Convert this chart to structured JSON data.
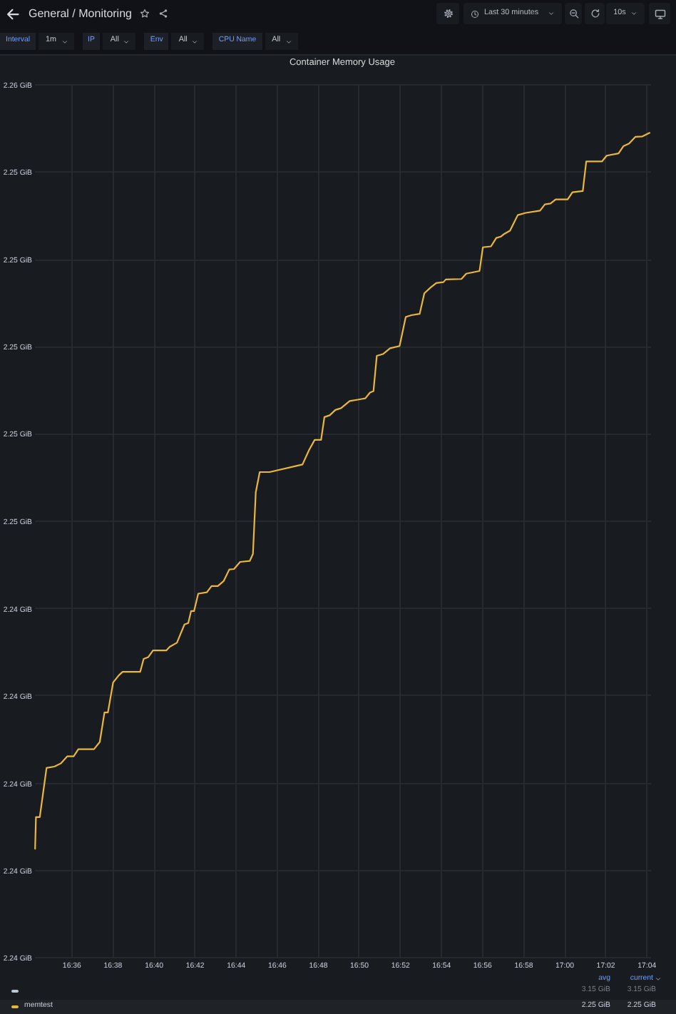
{
  "chart_data": {
    "type": "line",
    "title": "Container Memory Usage",
    "x": [
      16.5707,
      16.5714,
      16.5745,
      16.58,
      16.5864,
      16.5915,
      16.5969,
      16.602,
      16.6058,
      16.6185,
      16.6232,
      16.627,
      16.6298,
      16.634,
      16.6386,
      16.6417,
      16.656,
      16.6588,
      16.6626,
      16.6664,
      16.6773,
      16.68,
      16.6858,
      16.6919,
      16.695,
      16.6973,
      16.6997,
      16.7031,
      16.7101,
      16.7139,
      16.719,
      16.7237,
      16.7283,
      16.7321,
      16.7371,
      16.7449,
      16.7475,
      16.7498,
      16.753,
      16.7611,
      16.7877,
      16.793,
      16.7976,
      16.8028,
      16.8055,
      16.8098,
      16.8144,
      16.819,
      16.826,
      16.8326,
      16.8387,
      16.8425,
      16.8453,
      16.848,
      16.853,
      16.8588,
      16.8665,
      16.8715,
      16.8761,
      16.8828,
      16.8866,
      16.8917,
      16.8963,
      16.9021,
      16.904,
      16.9167,
      16.9206,
      16.9314,
      16.9341,
      16.9407,
      16.945,
      16.9488,
      16.9515,
      16.9561,
      16.9624,
      16.9689,
      16.9805,
      16.9844,
      16.989,
      16.9932,
      17.0029,
      17.0068,
      17.0152,
      17.018,
      17.0307,
      17.0346,
      17.0442,
      17.0481,
      17.0528,
      17.0578,
      17.0636,
      17.0694
    ],
    "series": [
      {
        "color": "#b9c9d3",
        "values": [
          null,
          null,
          null,
          null,
          null,
          null,
          null,
          null,
          null,
          null,
          null,
          null,
          null,
          null,
          null,
          null,
          null,
          null,
          null,
          null,
          null,
          null,
          null,
          null,
          null,
          null,
          null,
          null,
          null,
          null,
          null,
          null,
          null,
          null,
          null,
          null,
          null,
          null,
          null,
          null,
          null,
          null,
          null,
          null,
          null,
          null,
          null,
          null,
          null,
          null,
          null,
          null,
          null,
          null,
          null,
          null,
          null,
          null,
          null,
          null,
          null,
          null,
          null,
          null,
          null,
          null,
          null,
          null,
          null,
          null,
          null,
          null,
          null,
          null,
          null,
          null,
          null,
          null,
          null,
          null,
          null,
          null,
          null,
          null,
          null,
          null,
          null,
          null,
          null,
          null,
          null,
          null
        ]
      },
      {
        "name": "memtest",
        "color": "#eab839",
        "values": [
          2.23875,
          2.23946,
          2.23946,
          2.24056,
          2.24059,
          2.24066,
          2.24082,
          2.24082,
          2.24098,
          2.24098,
          2.24114,
          2.2418,
          2.2418,
          2.24247,
          2.24263,
          2.24271,
          2.24271,
          2.243,
          2.24304,
          2.24319,
          2.24319,
          2.24327,
          2.24336,
          2.24377,
          2.2438,
          2.24407,
          2.24407,
          2.24446,
          2.24449,
          2.24463,
          2.24463,
          2.24474,
          2.245,
          2.24501,
          2.24517,
          2.24519,
          2.24535,
          2.24673,
          2.24718,
          2.24718,
          2.24735,
          2.24767,
          2.2479,
          2.2479,
          2.24841,
          2.24845,
          2.24857,
          2.24861,
          2.24877,
          2.2488,
          2.24883,
          2.24896,
          2.24899,
          2.24978,
          2.24982,
          2.24995,
          2.25,
          2.25065,
          2.25069,
          2.25072,
          2.25118,
          2.25131,
          2.25141,
          2.25143,
          2.25149,
          2.2515,
          2.25162,
          2.25168,
          2.25221,
          2.25223,
          2.25242,
          2.25245,
          2.25251,
          2.25258,
          2.25293,
          2.25298,
          2.25303,
          2.25317,
          2.25319,
          2.25328,
          2.25328,
          2.25344,
          2.25347,
          2.25413,
          2.25413,
          2.25426,
          2.25431,
          2.25447,
          2.25453,
          2.25468,
          2.25469,
          2.25477
        ]
      }
    ],
    "xlim": [
      16.57,
      17.07
    ],
    "xticks": [
      {
        "value": 16.6,
        "label": "16:36"
      },
      {
        "value": 16.6333,
        "label": "16:38"
      },
      {
        "value": 16.6667,
        "label": "16:40"
      },
      {
        "value": 16.7,
        "label": "16:42"
      },
      {
        "value": 16.7333,
        "label": "16:44"
      },
      {
        "value": 16.7667,
        "label": "16:46"
      },
      {
        "value": 16.8,
        "label": "16:48"
      },
      {
        "value": 16.8333,
        "label": "16:50"
      },
      {
        "value": 16.8667,
        "label": "16:52"
      },
      {
        "value": 16.9,
        "label": "16:54"
      },
      {
        "value": 16.9333,
        "label": "16:56"
      },
      {
        "value": 16.9667,
        "label": "16:58"
      },
      {
        "value": 17.0,
        "label": "17:00"
      },
      {
        "value": 17.0333,
        "label": "17:02"
      },
      {
        "value": 17.0667,
        "label": "17:04"
      }
    ],
    "ylim": [
      2.23633,
      2.25586
    ],
    "yticks": [
      {
        "value": 2.23633,
        "label": "2.24 GiB"
      },
      {
        "value": 2.23828,
        "label": "2.24 GiB"
      },
      {
        "value": 2.24023,
        "label": "2.24 GiB"
      },
      {
        "value": 2.24219,
        "label": "2.24 GiB"
      },
      {
        "value": 2.24414,
        "label": "2.24 GiB"
      },
      {
        "value": 2.24609,
        "label": "2.25 GiB"
      },
      {
        "value": 2.24805,
        "label": "2.25 GiB"
      },
      {
        "value": 2.25,
        "label": "2.25 GiB"
      },
      {
        "value": 2.25195,
        "label": "2.25 GiB"
      },
      {
        "value": 2.25391,
        "label": "2.25 GiB"
      },
      {
        "value": 2.25586,
        "label": "2.26 GiB"
      }
    ],
    "grid": true,
    "legend": "bottom",
    "annotations": [
      "General / Monitoring",
      "Last 30 minutes",
      "10s",
      "Interval",
      "1m",
      "IP",
      "All",
      "Env",
      "All",
      "CPU Name",
      "All",
      "avg",
      "current",
      "3.15 GiB",
      "3.15 GiB",
      "2.25 GiB",
      "2.25 GiB"
    ]
  }
}
